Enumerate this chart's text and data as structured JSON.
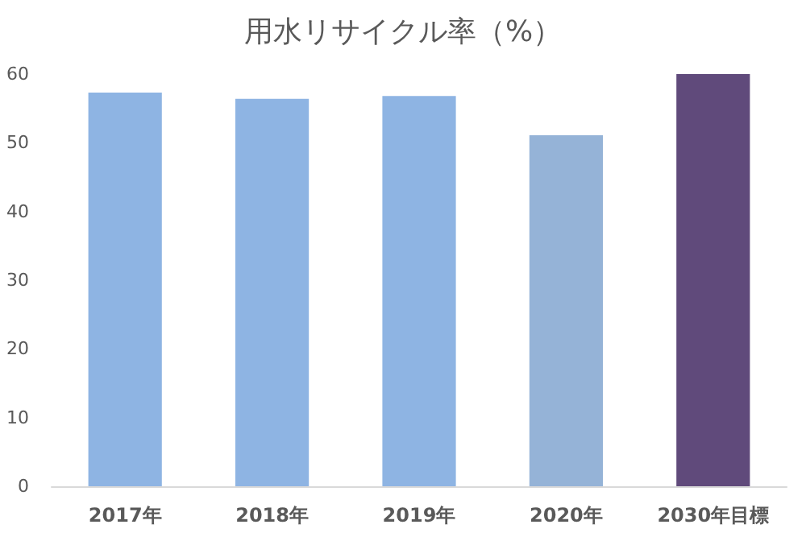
{
  "chart_data": {
    "type": "bar",
    "title": "用水リサイクル率（%）",
    "categories": [
      "2017年",
      "2018年",
      "2019年",
      "2020年",
      "2030年目標"
    ],
    "values": [
      57.3,
      56.4,
      56.8,
      51.1,
      60
    ],
    "colors": [
      "#8eb4e3",
      "#8eb4e3",
      "#8eb4e3",
      "#95b3d7",
      "#604a7b"
    ],
    "ylim": [
      0,
      60
    ],
    "yticks": [
      0,
      10,
      20,
      30,
      40,
      50,
      60
    ],
    "grid": false
  }
}
